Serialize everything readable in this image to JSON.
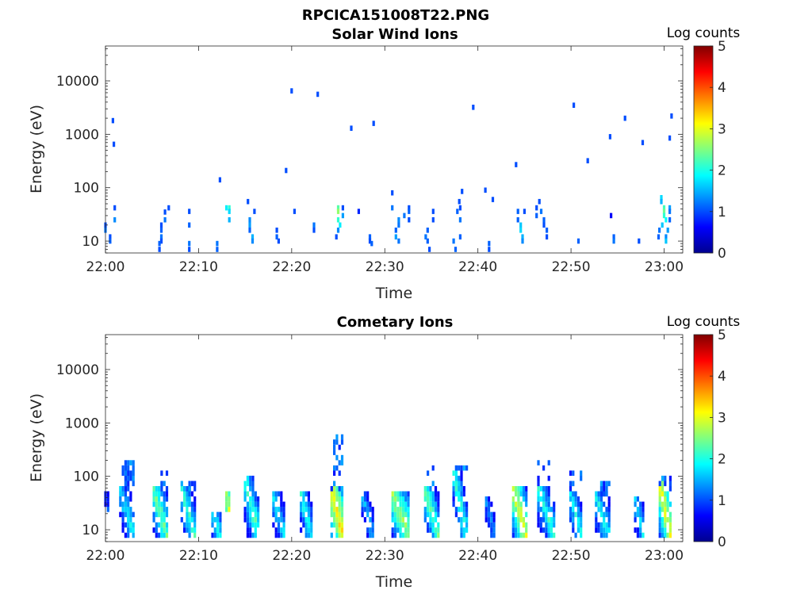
{
  "figure": {
    "suptitle": "RPCICA151008T22.PNG"
  },
  "chart_data": [
    {
      "type": "heatmap",
      "title": "Solar Wind Ions",
      "xlabel": "Time",
      "ylabel": "Energy (eV)",
      "x_ticks": [
        "22:00",
        "22:10",
        "22:20",
        "22:30",
        "22:40",
        "22:50",
        "23:00"
      ],
      "x_tick_minutes": [
        0,
        10,
        20,
        30,
        40,
        50,
        60
      ],
      "xlim_minutes": [
        0,
        62
      ],
      "y_scale": "log",
      "y_ticks": [
        "10",
        "100",
        "1000",
        "10000"
      ],
      "y_tick_values": [
        10,
        100,
        1000,
        10000
      ],
      "ylim": [
        6,
        45000
      ],
      "colorbar": {
        "label": "Log counts",
        "ticks": [
          "0",
          "1",
          "2",
          "3",
          "4",
          "5"
        ],
        "range": [
          0,
          5
        ],
        "colormap": "jet"
      },
      "cells": [
        [
          0,
          20,
          1
        ],
        [
          0,
          16,
          1.2
        ],
        [
          0.5,
          12,
          1
        ],
        [
          0.5,
          10,
          1.1
        ],
        [
          1,
          42,
          1
        ],
        [
          1,
          25,
          1.3
        ],
        [
          0.8,
          1800,
          1
        ],
        [
          0.9,
          650,
          1
        ],
        [
          6,
          20,
          1
        ],
        [
          6,
          16,
          1.1
        ],
        [
          6,
          12,
          1.2
        ],
        [
          6,
          10,
          1
        ],
        [
          6.4,
          25,
          1.2
        ],
        [
          6.4,
          35,
          1
        ],
        [
          5.8,
          9,
          1.1
        ],
        [
          5.8,
          7,
          1
        ],
        [
          6.8,
          42,
          1
        ],
        [
          9,
          36,
          1
        ],
        [
          9,
          20,
          1.1
        ],
        [
          9,
          9,
          1.2
        ],
        [
          9,
          7,
          1
        ],
        [
          12,
          9,
          1.2
        ],
        [
          12,
          7,
          1.1
        ],
        [
          12.3,
          140,
          1
        ],
        [
          13.3,
          42,
          2.1
        ],
        [
          13.3,
          36,
          1.7
        ],
        [
          13.3,
          25,
          1.5
        ],
        [
          13,
          42,
          1.8
        ],
        [
          15.5,
          25,
          1.3
        ],
        [
          15.5,
          20,
          1.4
        ],
        [
          15.5,
          16,
          1.1
        ],
        [
          15.8,
          12,
          1.5
        ],
        [
          15.8,
          10,
          1.3
        ],
        [
          16,
          36,
          1
        ],
        [
          15.3,
          55,
          1
        ],
        [
          18.4,
          16,
          1
        ],
        [
          18.4,
          12,
          1.1
        ],
        [
          18.6,
          10,
          1
        ],
        [
          19.4,
          210,
          1
        ],
        [
          20,
          6500,
          1
        ],
        [
          22.8,
          5600,
          1
        ],
        [
          20.3,
          36,
          1
        ],
        [
          22.4,
          20,
          1.2
        ],
        [
          22.4,
          16,
          1
        ],
        [
          25,
          42,
          2.3
        ],
        [
          25,
          36,
          2.6
        ],
        [
          25,
          25,
          2.1
        ],
        [
          25.2,
          20,
          1.8
        ],
        [
          25,
          16,
          1.3
        ],
        [
          24.8,
          12,
          1
        ],
        [
          25.5,
          30,
          1.4
        ],
        [
          25.5,
          42,
          1
        ],
        [
          26.4,
          1300,
          1
        ],
        [
          28.8,
          1600,
          1
        ],
        [
          27.2,
          36,
          0.8
        ],
        [
          28.4,
          12,
          1.1
        ],
        [
          28.4,
          10,
          1
        ],
        [
          28.6,
          9,
          1.1
        ],
        [
          30.8,
          42,
          1.2
        ],
        [
          30.8,
          80,
          1
        ],
        [
          31.5,
          25,
          1.3
        ],
        [
          31.5,
          20,
          1.2
        ],
        [
          31.2,
          16,
          1.1
        ],
        [
          31.2,
          12,
          1.4
        ],
        [
          31.5,
          10,
          1.2
        ],
        [
          32.1,
          30,
          1.2
        ],
        [
          32.6,
          42,
          1
        ],
        [
          32.6,
          36,
          1.1
        ],
        [
          32.6,
          25,
          1
        ],
        [
          34.4,
          12,
          1.2
        ],
        [
          34.6,
          10,
          1.1
        ],
        [
          34.8,
          7,
          1
        ],
        [
          35.2,
          36,
          1
        ],
        [
          35.2,
          25,
          1
        ],
        [
          34.6,
          16,
          1.1
        ],
        [
          37.4,
          10,
          1.2
        ],
        [
          37.6,
          7,
          1.1
        ],
        [
          37.8,
          36,
          1.1
        ],
        [
          38.1,
          42,
          1
        ],
        [
          38.1,
          25,
          1.2
        ],
        [
          38,
          55,
          1
        ],
        [
          38.3,
          85,
          1
        ],
        [
          38.1,
          12,
          1.1
        ],
        [
          39.5,
          3200,
          1
        ],
        [
          40.8,
          90,
          1
        ],
        [
          41.6,
          60,
          1
        ],
        [
          41.2,
          9,
          1.1
        ],
        [
          41.2,
          7,
          1
        ],
        [
          44.3,
          36,
          1.1
        ],
        [
          44.3,
          25,
          1.1
        ],
        [
          44.6,
          20,
          1.6
        ],
        [
          44.6,
          16,
          1.7
        ],
        [
          44.8,
          12,
          1.5
        ],
        [
          44.8,
          10,
          1.3
        ],
        [
          45,
          36,
          1
        ],
        [
          44.1,
          270,
          1
        ],
        [
          46.3,
          42,
          1
        ],
        [
          46.3,
          30,
          1.1
        ],
        [
          46.8,
          36,
          1.2
        ],
        [
          47.1,
          25,
          1.1
        ],
        [
          47.1,
          20,
          1
        ],
        [
          47.4,
          16,
          1.1
        ],
        [
          47.4,
          12,
          1
        ],
        [
          46.6,
          55,
          1
        ],
        [
          50.3,
          3500,
          1
        ],
        [
          51.8,
          320,
          1
        ],
        [
          54.2,
          900,
          1
        ],
        [
          55.8,
          2000,
          1
        ],
        [
          57.7,
          700,
          1
        ],
        [
          60.8,
          2200,
          1
        ],
        [
          60.6,
          850,
          1
        ],
        [
          50.8,
          10,
          1.1
        ],
        [
          54.3,
          30,
          0.6
        ],
        [
          54.6,
          12,
          1.1
        ],
        [
          54.6,
          10,
          1.2
        ],
        [
          57.3,
          10,
          1
        ],
        [
          59.7,
          65,
          1.7
        ],
        [
          59.7,
          55,
          1.5
        ],
        [
          60,
          42,
          2.2
        ],
        [
          60,
          36,
          2.4
        ],
        [
          60,
          30,
          2.1
        ],
        [
          60.2,
          25,
          1.9
        ],
        [
          59.8,
          20,
          1.6
        ],
        [
          60.4,
          16,
          1.4
        ],
        [
          59.5,
          16,
          1.2
        ],
        [
          60.2,
          12,
          1.3
        ],
        [
          60.2,
          10,
          1.6
        ],
        [
          60.6,
          42,
          1.4
        ],
        [
          60.6,
          36,
          1.2
        ],
        [
          60.6,
          25,
          1.1
        ],
        [
          59.4,
          12,
          1.1
        ]
      ]
    },
    {
      "type": "heatmap",
      "title": "Cometary Ions",
      "xlabel": "Time",
      "ylabel": "Energy (eV)",
      "x_ticks": [
        "22:00",
        "22:10",
        "22:20",
        "22:30",
        "22:40",
        "22:50",
        "23:00"
      ],
      "x_tick_minutes": [
        0,
        10,
        20,
        30,
        40,
        50,
        60
      ],
      "xlim_minutes": [
        0,
        62
      ],
      "y_scale": "log",
      "y_ticks": [
        "10",
        "100",
        "1000",
        "10000"
      ],
      "y_tick_values": [
        10,
        100,
        1000,
        10000
      ],
      "ylim": [
        6,
        45000
      ],
      "colorbar": {
        "label": "Log counts",
        "ticks": [
          "0",
          "1",
          "2",
          "3",
          "4",
          "5"
        ],
        "range": [
          0,
          5
        ],
        "colormap": "jet"
      },
      "bursts": [
        {
          "t": 0.3,
          "w": 0.6,
          "lo": 25,
          "hi": 45,
          "peak": 1.3
        },
        {
          "t": 2.5,
          "w": 1.8,
          "lo": 9,
          "hi": 55,
          "peak": 2.1,
          "top": 200
        },
        {
          "t": 6.0,
          "w": 1.6,
          "lo": 8,
          "hi": 55,
          "peak": 2.6,
          "top": 140
        },
        {
          "t": 9.0,
          "w": 1.6,
          "lo": 8,
          "hi": 55,
          "peak": 2.4,
          "top": 80
        },
        {
          "t": 12.0,
          "w": 1.0,
          "lo": 8,
          "hi": 20,
          "peak": 2.1
        },
        {
          "t": 13.3,
          "w": 0.6,
          "lo": 25,
          "hi": 45,
          "peak": 3.1
        },
        {
          "t": 15.8,
          "w": 1.6,
          "lo": 9,
          "hi": 80,
          "peak": 2.5
        },
        {
          "t": 18.7,
          "w": 1.3,
          "lo": 8,
          "hi": 45,
          "peak": 2.1
        },
        {
          "t": 21.7,
          "w": 1.4,
          "lo": 8,
          "hi": 45,
          "peak": 2.2
        },
        {
          "t": 25.0,
          "w": 1.4,
          "lo": 9,
          "hi": 55,
          "peak": 3.5,
          "top": 550
        },
        {
          "t": 28.3,
          "w": 1.4,
          "lo": 8,
          "hi": 45,
          "peak": 1.8
        },
        {
          "t": 31.8,
          "w": 1.9,
          "lo": 9,
          "hi": 45,
          "peak": 2.9
        },
        {
          "t": 35.2,
          "w": 1.7,
          "lo": 8,
          "hi": 55,
          "peak": 2.6,
          "top": 150
        },
        {
          "t": 38.3,
          "w": 1.8,
          "lo": 8,
          "hi": 120,
          "peak": 2.4,
          "top": 150
        },
        {
          "t": 41.5,
          "w": 1.2,
          "lo": 8,
          "hi": 35,
          "peak": 1.6
        },
        {
          "t": 44.7,
          "w": 1.8,
          "lo": 8,
          "hi": 55,
          "peak": 3.2
        },
        {
          "t": 47.5,
          "w": 2.0,
          "lo": 8,
          "hi": 60,
          "peak": 2.3,
          "top": 220
        },
        {
          "t": 50.7,
          "w": 1.5,
          "lo": 9,
          "hi": 45,
          "peak": 2.2,
          "top": 120
        },
        {
          "t": 53.5,
          "w": 1.6,
          "lo": 8,
          "hi": 40,
          "peak": 2.2,
          "top": 90
        },
        {
          "t": 57.5,
          "w": 1.2,
          "lo": 8,
          "hi": 35,
          "peak": 2.0
        },
        {
          "t": 60.3,
          "w": 1.5,
          "lo": 8,
          "hi": 70,
          "peak": 3.3,
          "top": 110
        }
      ]
    }
  ]
}
